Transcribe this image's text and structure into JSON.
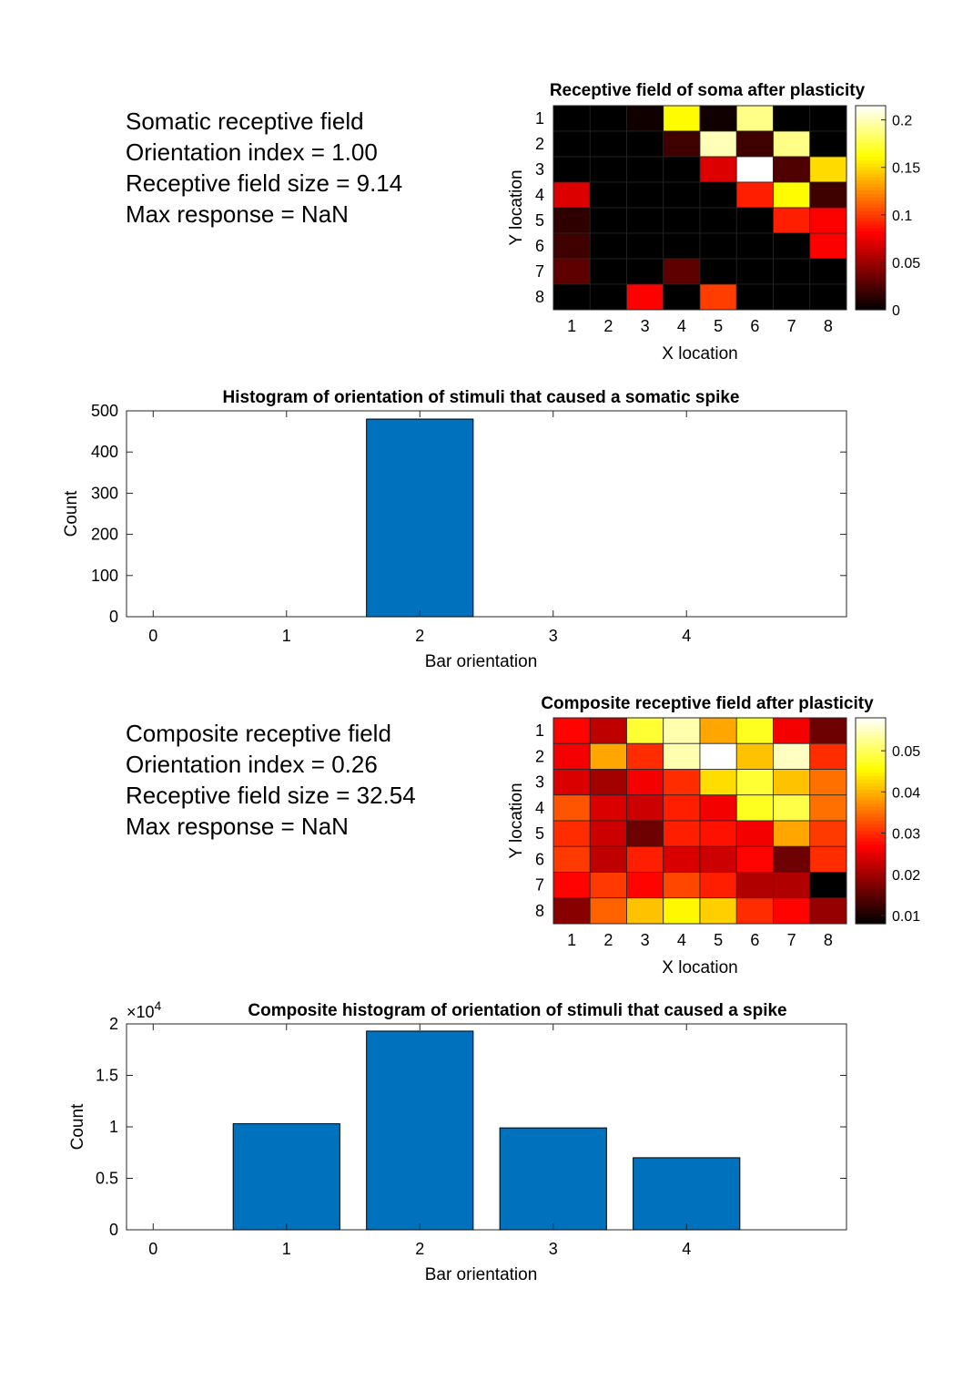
{
  "panels": {
    "somatic_info": {
      "title": "Somatic receptive field",
      "orientation_index": "Orientation index = 1.00",
      "rf_size": "Receptive field size = 9.14",
      "max_response": "Max response = NaN"
    },
    "composite_info": {
      "title": "Composite receptive field",
      "orientation_index": "Orientation index = 0.26",
      "rf_size": "Receptive field size = 32.54",
      "max_response": "Max response = NaN"
    }
  },
  "chart_data": [
    {
      "type": "heatmap",
      "id": "soma_rf",
      "title": "Receptive field of soma after plasticity",
      "xlabel": "X location",
      "ylabel": "Y location",
      "x_ticks": [
        "1",
        "2",
        "3",
        "4",
        "5",
        "6",
        "7",
        "8"
      ],
      "y_ticks": [
        "1",
        "2",
        "3",
        "4",
        "5",
        "6",
        "7",
        "8"
      ],
      "colormap": "hot",
      "clim": [
        0,
        0.215
      ],
      "colorbar_ticks": [
        0,
        0.05,
        0.1,
        0.15,
        0.2
      ],
      "colorbar_tick_labels": [
        "0",
        "0.05",
        "0.1",
        "0.15",
        "0.2"
      ],
      "values": [
        [
          0.0,
          0.0,
          0.005,
          0.16,
          0.005,
          0.19,
          0.0,
          0.0
        ],
        [
          0.0,
          0.0,
          0.0,
          0.02,
          0.2,
          0.02,
          0.19,
          0.0
        ],
        [
          0.0,
          0.0,
          0.0,
          0.0,
          0.07,
          0.215,
          0.025,
          0.15
        ],
        [
          0.07,
          0.0,
          0.0,
          0.0,
          0.0,
          0.09,
          0.16,
          0.02
        ],
        [
          0.015,
          0.0,
          0.0,
          0.0,
          0.0,
          0.0,
          0.09,
          0.08
        ],
        [
          0.02,
          0.0,
          0.0,
          0.0,
          0.0,
          0.0,
          0.0,
          0.08
        ],
        [
          0.03,
          0.0,
          0.0,
          0.03,
          0.0,
          0.0,
          0.0,
          0.0
        ],
        [
          0.0,
          0.0,
          0.08,
          0.0,
          0.1,
          0.0,
          0.0,
          0.0
        ]
      ]
    },
    {
      "type": "bar",
      "id": "soma_hist",
      "title": "Histogram of orientation of stimuli that caused a somatic spike",
      "xlabel": "Bar orientation",
      "ylabel": "Count",
      "categories": [
        0,
        1,
        2,
        3,
        4
      ],
      "x_ticks": [
        "0",
        "1",
        "2",
        "3",
        "4"
      ],
      "xlim": [
        -0.2,
        5.2
      ],
      "values": [
        0,
        0,
        480,
        0,
        0
      ],
      "ylim": [
        0,
        500
      ],
      "y_ticks": [
        0,
        100,
        200,
        300,
        400,
        500
      ],
      "y_tick_labels": [
        "0",
        "100",
        "200",
        "300",
        "400",
        "500"
      ],
      "exponent_label": "",
      "bar_color": "#0072BD"
    },
    {
      "type": "heatmap",
      "id": "composite_rf",
      "title": "Composite receptive field after plasticity",
      "xlabel": "X location",
      "ylabel": "Y location",
      "x_ticks": [
        "1",
        "2",
        "3",
        "4",
        "5",
        "6",
        "7",
        "8"
      ],
      "y_ticks": [
        "1",
        "2",
        "3",
        "4",
        "5",
        "6",
        "7",
        "8"
      ],
      "colormap": "hot",
      "clim": [
        0.008,
        0.058
      ],
      "colorbar_ticks": [
        0.01,
        0.02,
        0.03,
        0.04,
        0.05
      ],
      "colorbar_tick_labels": [
        "0.01",
        "0.02",
        "0.03",
        "0.04",
        "0.05"
      ],
      "values": [
        [
          0.027,
          0.022,
          0.048,
          0.054,
          0.039,
          0.047,
          0.026,
          0.016
        ],
        [
          0.026,
          0.039,
          0.03,
          0.054,
          0.058,
          0.041,
          0.055,
          0.03
        ],
        [
          0.024,
          0.02,
          0.026,
          0.03,
          0.043,
          0.048,
          0.041,
          0.035
        ],
        [
          0.033,
          0.024,
          0.023,
          0.029,
          0.026,
          0.047,
          0.049,
          0.035
        ],
        [
          0.03,
          0.023,
          0.016,
          0.029,
          0.028,
          0.026,
          0.039,
          0.031
        ],
        [
          0.031,
          0.022,
          0.029,
          0.024,
          0.023,
          0.027,
          0.016,
          0.03
        ],
        [
          0.027,
          0.031,
          0.027,
          0.032,
          0.029,
          0.021,
          0.021,
          0.008
        ],
        [
          0.018,
          0.034,
          0.041,
          0.045,
          0.042,
          0.03,
          0.027,
          0.019
        ]
      ]
    },
    {
      "type": "bar",
      "id": "composite_hist",
      "title": "Composite histogram of orientation of stimuli that caused a spike",
      "xlabel": "Bar orientation",
      "ylabel": "Count",
      "categories": [
        0,
        1,
        2,
        3,
        4
      ],
      "x_ticks": [
        "0",
        "1",
        "2",
        "3",
        "4"
      ],
      "xlim": [
        -0.2,
        5.2
      ],
      "values": [
        0,
        10300,
        19300,
        9900,
        7000
      ],
      "ylim": [
        0,
        20000
      ],
      "y_ticks": [
        0,
        5000,
        10000,
        15000,
        20000
      ],
      "y_tick_labels": [
        "0",
        "0.5",
        "1",
        "1.5",
        "2"
      ],
      "exponent_label": "×10",
      "exponent_power": "4",
      "bar_color": "#0072BD"
    }
  ]
}
